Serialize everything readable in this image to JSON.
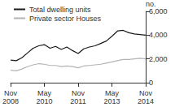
{
  "chart_data": {
    "type": "line",
    "y_label": "no.",
    "categories": [
      "Nov 2008",
      null,
      null,
      null,
      null,
      null,
      "May 2010",
      null,
      null,
      null,
      null,
      null,
      "Nov 2011",
      null,
      null,
      null,
      null,
      null,
      "May 2013",
      null,
      null,
      null,
      null,
      null,
      "Nov 2014"
    ],
    "series": [
      {
        "name": "Total dwelling units",
        "color": "#1a1a1a",
        "values": [
          1900,
          1850,
          2100,
          2500,
          2900,
          3100,
          3200,
          2900,
          3050,
          2800,
          3000,
          2700,
          2450,
          2850,
          3000,
          3100,
          3300,
          3500,
          3900,
          4350,
          4400,
          4200,
          4100,
          4050,
          4000
        ]
      },
      {
        "name": "Private sector Houses",
        "color": "#b3b3b3",
        "values": [
          1050,
          1000,
          1150,
          1350,
          1500,
          1600,
          1550,
          1450,
          1450,
          1350,
          1400,
          1350,
          1250,
          1400,
          1450,
          1500,
          1550,
          1650,
          1750,
          1850,
          1950,
          1950,
          2000,
          2050,
          2000
        ]
      }
    ],
    "ylim": [
      0,
      6000
    ],
    "yticks": [
      0,
      2000,
      4000,
      6000
    ],
    "grid": false,
    "legend": "upper left"
  }
}
